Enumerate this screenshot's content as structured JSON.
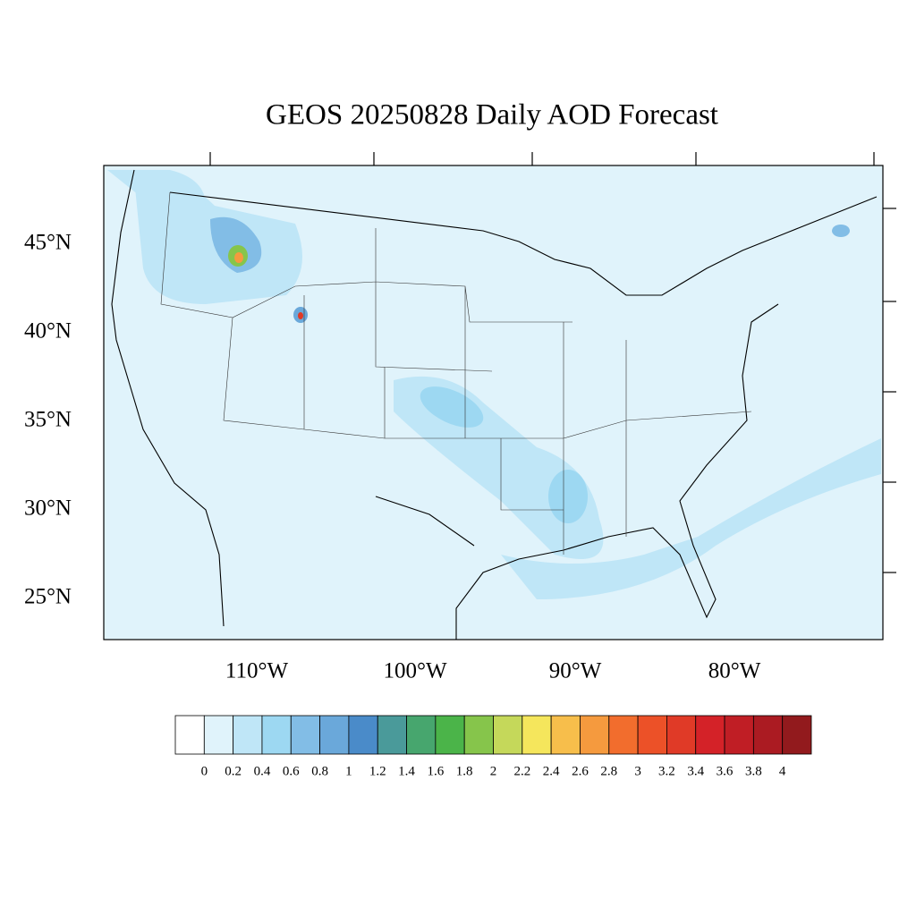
{
  "header": {
    "title": "GEOS 20250828 Daily AOD Forecast"
  },
  "map": {
    "lat_labels": [
      "45°N",
      "40°N",
      "35°N",
      "30°N",
      "25°N"
    ],
    "lon_labels": [
      "110°W",
      "100°W",
      "90°W",
      "80°W"
    ],
    "background": "#e0f3fb"
  },
  "colorbar": {
    "levels": [
      0,
      0.2,
      0.4,
      0.6,
      0.8,
      1,
      1.2,
      1.4,
      1.6,
      1.8,
      2,
      2.2,
      2.4,
      2.6,
      2.8,
      3,
      3.2,
      3.4,
      3.6,
      3.8,
      4
    ],
    "colors": [
      "#ffffff",
      "#e0f3fb",
      "#bfe6f7",
      "#9dd8f2",
      "#82bde6",
      "#6aa8da",
      "#4a8bc9",
      "#4a9a9a",
      "#47a66e",
      "#4bb449",
      "#86c54b",
      "#c5d85a",
      "#f5e65c",
      "#f7be4b",
      "#f59a3e",
      "#f26d2d",
      "#ec5128",
      "#e03a27",
      "#d42228",
      "#c01e25",
      "#ab1b22",
      "#921a1d"
    ]
  }
}
